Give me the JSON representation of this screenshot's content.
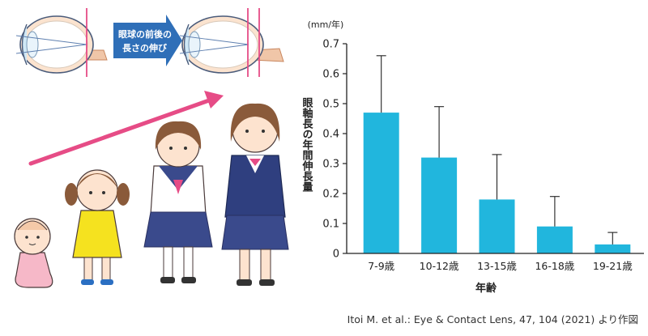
{
  "illustration": {
    "arrow_label_line1": "眼球の前後の",
    "arrow_label_line2": "長さの伸び",
    "accent_color": "#e64c86",
    "arrow_color": "#2f6fb8"
  },
  "source_note": "Itoi M. et al.: Eye & Contact Lens, 47, 104 (2021) より作図",
  "chart_data": {
    "type": "bar",
    "categories": [
      "7-9歳",
      "10-12歳",
      "13-15歳",
      "16-18歳",
      "19-21歳"
    ],
    "values": [
      0.47,
      0.32,
      0.18,
      0.09,
      0.03
    ],
    "error_upper": [
      0.66,
      0.49,
      0.33,
      0.19,
      0.07
    ],
    "xlabel": "年齢",
    "ylabel": "眼軸長の年間伸長量",
    "unit": "(mm/年)",
    "ylim": [
      0,
      0.7
    ],
    "yticks": [
      "0",
      "0.1",
      "0.2",
      "0.3",
      "0.4",
      "0.5",
      "0.6",
      "0.7"
    ],
    "bar_color": "#21b6dd",
    "grid": false
  }
}
